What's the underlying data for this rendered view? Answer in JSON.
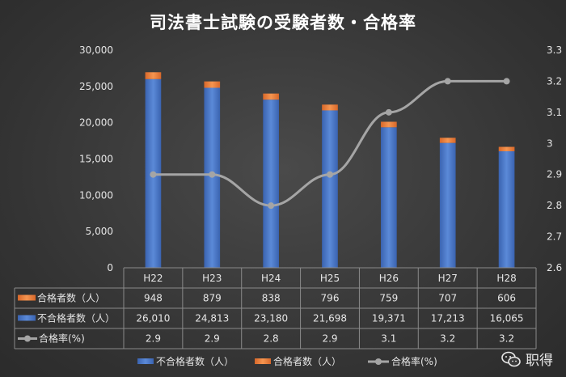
{
  "chart_data": {
    "type": "bar",
    "title": "司法書士試験の受験者数・合格率",
    "categories": [
      "H22",
      "H23",
      "H24",
      "H25",
      "H26",
      "H27",
      "H28"
    ],
    "series": [
      {
        "name": "不合格者数（人）",
        "type": "bar",
        "stack": "total",
        "color": "#4472c4",
        "values": [
          26010,
          24813,
          23180,
          21698,
          19371,
          17213,
          16065
        ],
        "labels": [
          "26,010",
          "24,813",
          "23,180",
          "21,698",
          "19,371",
          "17,213",
          "16,065"
        ]
      },
      {
        "name": "合格者数（人）",
        "type": "bar",
        "stack": "total",
        "color": "#ed7d31",
        "values": [
          948,
          879,
          838,
          796,
          759,
          707,
          606
        ],
        "labels": [
          "948",
          "879",
          "838",
          "796",
          "759",
          "707",
          "606"
        ]
      },
      {
        "name": "合格率(%)",
        "type": "line",
        "axis": "right",
        "color": "#a5a5a5",
        "values": [
          2.9,
          2.9,
          2.8,
          2.9,
          3.1,
          3.2,
          3.2
        ],
        "labels": [
          "2.9",
          "2.9",
          "2.8",
          "2.9",
          "3.1",
          "3.2",
          "3.2"
        ]
      }
    ],
    "table_row_order": [
      "合格者数（人）",
      "不合格者数（人）",
      "合格率(%)"
    ],
    "y_left": {
      "min": 0,
      "max": 30000,
      "ticks": [
        "0",
        "5,000",
        "10,000",
        "15,000",
        "20,000",
        "25,000",
        "30,000"
      ]
    },
    "y_right": {
      "min": 2.6,
      "max": 3.3,
      "ticks": [
        "2.6",
        "2.7",
        "2.8",
        "2.9",
        "3",
        "3.1",
        "3.2",
        "3.3"
      ]
    },
    "legend_position": "bottom",
    "data_table": true,
    "grid": false
  },
  "watermark": "职得"
}
